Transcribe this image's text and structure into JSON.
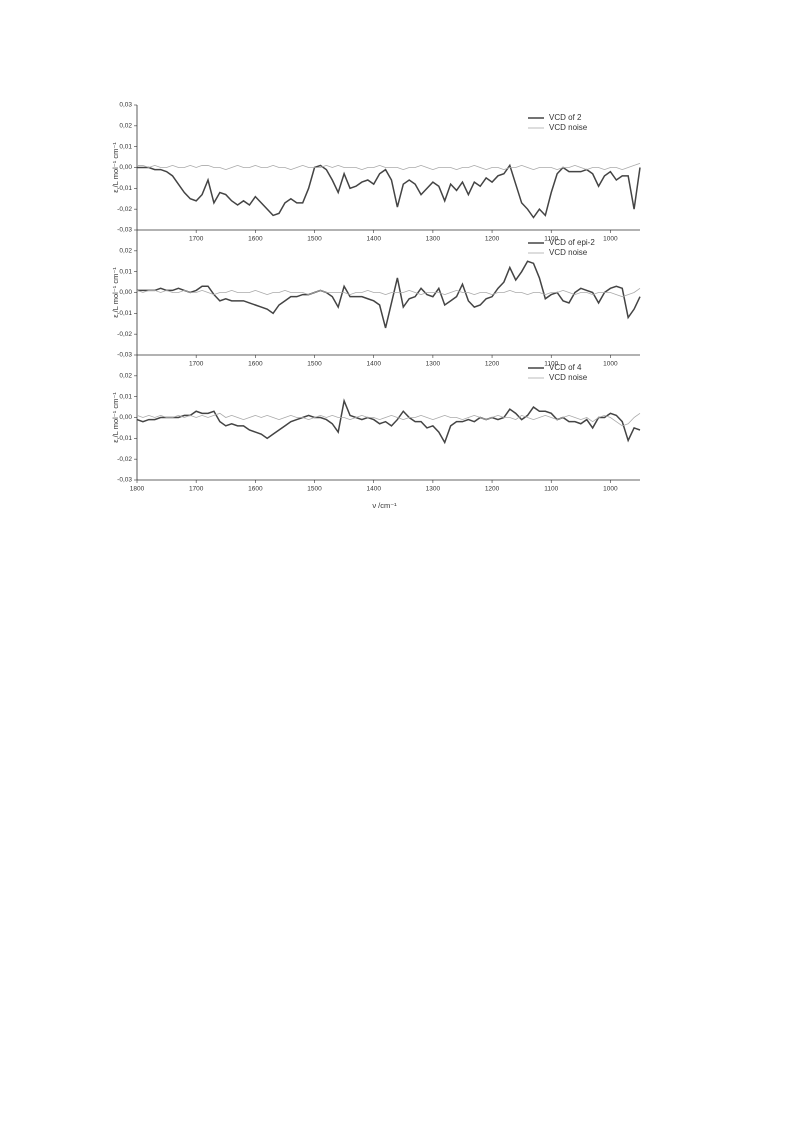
{
  "chart_data": [
    {
      "type": "line",
      "ylabel": "ε /L mol⁻¹ cm⁻¹",
      "xlim": [
        1800,
        950
      ],
      "ylim": [
        -0.03,
        0.03
      ],
      "xticks": [
        1700,
        1600,
        1500,
        1400,
        1300,
        1200,
        1100,
        1000
      ],
      "yticks": [
        {
          "value": 0.03,
          "label": "0,03"
        },
        {
          "value": 0.02,
          "label": "0,02"
        },
        {
          "value": 0.01,
          "label": "0,01"
        },
        {
          "value": 0,
          "label": "0,00"
        },
        {
          "value": -0.01,
          "label": "-0,01"
        },
        {
          "value": -0.02,
          "label": "-0,02"
        },
        {
          "value": -0.03,
          "label": "-0,03"
        }
      ],
      "legend": "upper right",
      "x": [
        1800,
        1790,
        1780,
        1770,
        1760,
        1750,
        1740,
        1730,
        1720,
        1710,
        1700,
        1690,
        1680,
        1670,
        1660,
        1650,
        1640,
        1630,
        1620,
        1610,
        1600,
        1590,
        1580,
        1570,
        1560,
        1550,
        1540,
        1530,
        1520,
        1510,
        1500,
        1490,
        1480,
        1470,
        1460,
        1450,
        1440,
        1430,
        1420,
        1410,
        1400,
        1390,
        1380,
        1370,
        1360,
        1350,
        1340,
        1330,
        1320,
        1310,
        1300,
        1290,
        1280,
        1270,
        1260,
        1250,
        1240,
        1230,
        1220,
        1210,
        1200,
        1190,
        1180,
        1170,
        1160,
        1150,
        1140,
        1130,
        1120,
        1110,
        1100,
        1090,
        1080,
        1070,
        1060,
        1050,
        1040,
        1030,
        1020,
        1010,
        1000,
        990,
        980,
        970,
        960,
        950
      ],
      "series": [
        {
          "name": "VCD of 2",
          "color": "#444444",
          "values": [
            0.0,
            0.0,
            0.0,
            -0.001,
            -0.001,
            -0.002,
            -0.004,
            -0.008,
            -0.012,
            -0.015,
            -0.016,
            -0.013,
            -0.006,
            -0.017,
            -0.012,
            -0.013,
            -0.016,
            -0.018,
            -0.016,
            -0.018,
            -0.014,
            -0.017,
            -0.02,
            -0.023,
            -0.022,
            -0.017,
            -0.015,
            -0.017,
            -0.017,
            -0.01,
            0.0,
            0.001,
            -0.001,
            -0.006,
            -0.012,
            -0.003,
            -0.01,
            -0.009,
            -0.007,
            -0.006,
            -0.008,
            -0.003,
            -0.001,
            -0.006,
            -0.019,
            -0.008,
            -0.006,
            -0.008,
            -0.013,
            -0.01,
            -0.007,
            -0.009,
            -0.016,
            -0.008,
            -0.011,
            -0.007,
            -0.013,
            -0.007,
            -0.009,
            -0.005,
            -0.007,
            -0.004,
            -0.003,
            0.001,
            -0.008,
            -0.017,
            -0.02,
            -0.024,
            -0.02,
            -0.023,
            -0.012,
            -0.003,
            0.0,
            -0.002,
            -0.002,
            -0.002,
            -0.001,
            -0.003,
            -0.009,
            -0.004,
            -0.002,
            -0.006,
            -0.004,
            -0.004,
            -0.02,
            0.0
          ]
        },
        {
          "name": "VCD noise",
          "color": "#aaaaaa",
          "values": [
            0.001,
            0.001,
            0.0,
            0.001,
            0.0,
            0.0,
            0.001,
            0.0,
            0.0,
            0.001,
            0.0,
            0.001,
            0.001,
            0.0,
            0.0,
            -0.001,
            0.0,
            0.001,
            0.0,
            0.0,
            0.001,
            0.0,
            0.0,
            0.001,
            0.0,
            0.0,
            -0.001,
            0.0,
            0.001,
            0.0,
            0.0,
            0.0,
            0.001,
            0.0,
            0.001,
            0.0,
            0.0,
            0.0,
            -0.001,
            0.0,
            0.0,
            0.001,
            0.0,
            0.0,
            0.0,
            -0.001,
            0.0,
            0.0,
            0.001,
            0.0,
            -0.001,
            0.0,
            0.0,
            0.0,
            -0.001,
            0.0,
            0.0,
            0.001,
            0.0,
            -0.001,
            0.0,
            0.0,
            -0.001,
            0.0,
            0.0,
            0.001,
            0.0,
            -0.001,
            0.0,
            0.0,
            0.0,
            -0.001,
            0.0,
            0.0,
            0.001,
            0.0,
            -0.001,
            0.0,
            0.0,
            -0.001,
            0.0,
            0.0,
            -0.001,
            0.0,
            0.001,
            0.002
          ]
        }
      ]
    },
    {
      "type": "line",
      "ylabel": "ε /L mol⁻¹ cm⁻¹",
      "xlim": [
        1800,
        950
      ],
      "ylim": [
        -0.03,
        0.03
      ],
      "xticks": [
        1700,
        1600,
        1500,
        1400,
        1300,
        1200,
        1100,
        1000
      ],
      "yticks": [
        {
          "value": 0.02,
          "label": "0,02"
        },
        {
          "value": 0.01,
          "label": "0,01"
        },
        {
          "value": 0,
          "label": "0,00"
        },
        {
          "value": -0.01,
          "label": "-0,01"
        },
        {
          "value": -0.02,
          "label": "-0,02"
        },
        {
          "value": -0.03,
          "label": "-0,03"
        }
      ],
      "legend": "upper right",
      "x": [
        1800,
        1790,
        1780,
        1770,
        1760,
        1750,
        1740,
        1730,
        1720,
        1710,
        1700,
        1690,
        1680,
        1670,
        1660,
        1650,
        1640,
        1630,
        1620,
        1610,
        1600,
        1590,
        1580,
        1570,
        1560,
        1550,
        1540,
        1530,
        1520,
        1510,
        1500,
        1490,
        1480,
        1470,
        1460,
        1450,
        1440,
        1430,
        1420,
        1410,
        1400,
        1390,
        1380,
        1370,
        1360,
        1350,
        1340,
        1330,
        1320,
        1310,
        1300,
        1290,
        1280,
        1270,
        1260,
        1250,
        1240,
        1230,
        1220,
        1210,
        1200,
        1190,
        1180,
        1170,
        1160,
        1150,
        1140,
        1130,
        1120,
        1110,
        1100,
        1090,
        1080,
        1070,
        1060,
        1050,
        1040,
        1030,
        1020,
        1010,
        1000,
        990,
        980,
        970,
        960,
        950
      ],
      "series": [
        {
          "name": "VCD of epi-2",
          "color": "#444444",
          "values": [
            0.001,
            0.001,
            0.001,
            0.001,
            0.002,
            0.001,
            0.001,
            0.002,
            0.001,
            0.0,
            0.001,
            0.003,
            0.003,
            -0.001,
            -0.004,
            -0.003,
            -0.004,
            -0.004,
            -0.004,
            -0.005,
            -0.006,
            -0.007,
            -0.008,
            -0.01,
            -0.006,
            -0.004,
            -0.002,
            -0.002,
            -0.001,
            -0.001,
            0.0,
            0.001,
            0.0,
            -0.002,
            -0.007,
            0.003,
            -0.002,
            -0.002,
            -0.002,
            -0.003,
            -0.004,
            -0.006,
            -0.017,
            -0.005,
            0.007,
            -0.007,
            -0.003,
            -0.002,
            0.002,
            -0.001,
            -0.002,
            0.002,
            -0.006,
            -0.004,
            -0.002,
            0.004,
            -0.004,
            -0.007,
            -0.006,
            -0.003,
            -0.002,
            0.002,
            0.005,
            0.012,
            0.006,
            0.01,
            0.015,
            0.014,
            0.007,
            -0.003,
            -0.001,
            0.0,
            -0.004,
            -0.005,
            0.0,
            0.002,
            0.001,
            0.0,
            -0.005,
            0.0,
            0.002,
            0.003,
            0.002,
            -0.012,
            -0.008,
            -0.002
          ]
        },
        {
          "name": "VCD noise",
          "color": "#aaaaaa",
          "values": [
            0.001,
            0.0,
            0.001,
            0.001,
            0.0,
            0.001,
            0.0,
            0.0,
            0.001,
            0.0,
            0.0,
            0.001,
            0.0,
            -0.001,
            0.0,
            0.0,
            0.001,
            0.0,
            0.0,
            0.0,
            0.001,
            0.0,
            -0.001,
            0.0,
            0.0,
            0.001,
            0.0,
            0.0,
            0.0,
            -0.001,
            0.0,
            0.001,
            0.0,
            0.0,
            0.0,
            0.0,
            -0.001,
            0.0,
            0.0,
            0.001,
            0.0,
            0.0,
            -0.001,
            0.0,
            0.0,
            0.0,
            0.001,
            0.0,
            -0.001,
            0.0,
            0.0,
            0.0,
            -0.001,
            0.0,
            0.001,
            0.0,
            0.0,
            -0.001,
            0.0,
            0.0,
            -0.001,
            0.0,
            0.0,
            0.001,
            0.0,
            0.0,
            -0.001,
            0.0,
            0.0,
            -0.001,
            0.0,
            0.0,
            0.001,
            0.0,
            -0.001,
            0.0,
            0.0,
            -0.001,
            0.0,
            0.0,
            0.0,
            -0.001,
            -0.002,
            -0.001,
            0.0,
            0.002
          ]
        }
      ]
    },
    {
      "type": "line",
      "ylabel": "ε /L mol⁻¹ cm⁻¹",
      "xlabel": "ν /cm⁻¹",
      "xlim": [
        1800,
        950
      ],
      "ylim": [
        -0.03,
        0.03
      ],
      "xticks": [
        1800,
        1700,
        1600,
        1500,
        1400,
        1300,
        1200,
        1100,
        1000
      ],
      "yticks": [
        {
          "value": 0.02,
          "label": "0,02"
        },
        {
          "value": 0.01,
          "label": "0,01"
        },
        {
          "value": 0,
          "label": "0,00"
        },
        {
          "value": -0.01,
          "label": "-0,01"
        },
        {
          "value": -0.02,
          "label": "-0,02"
        },
        {
          "value": -0.03,
          "label": "-0,03"
        }
      ],
      "legend": "upper right",
      "x": [
        1800,
        1790,
        1780,
        1770,
        1760,
        1750,
        1740,
        1730,
        1720,
        1710,
        1700,
        1690,
        1680,
        1670,
        1660,
        1650,
        1640,
        1630,
        1620,
        1610,
        1600,
        1590,
        1580,
        1570,
        1560,
        1550,
        1540,
        1530,
        1520,
        1510,
        1500,
        1490,
        1480,
        1470,
        1460,
        1450,
        1440,
        1430,
        1420,
        1410,
        1400,
        1390,
        1380,
        1370,
        1360,
        1350,
        1340,
        1330,
        1320,
        1310,
        1300,
        1290,
        1280,
        1270,
        1260,
        1250,
        1240,
        1230,
        1220,
        1210,
        1200,
        1190,
        1180,
        1170,
        1160,
        1150,
        1140,
        1130,
        1120,
        1110,
        1100,
        1090,
        1080,
        1070,
        1060,
        1050,
        1040,
        1030,
        1020,
        1010,
        1000,
        990,
        980,
        970,
        960,
        950
      ],
      "series": [
        {
          "name": "VCD of 4",
          "color": "#444444",
          "values": [
            -0.001,
            -0.002,
            -0.001,
            -0.001,
            0.0,
            0.0,
            0.0,
            0.0,
            0.001,
            0.001,
            0.003,
            0.002,
            0.002,
            0.003,
            -0.002,
            -0.004,
            -0.003,
            -0.004,
            -0.004,
            -0.006,
            -0.007,
            -0.008,
            -0.01,
            -0.008,
            -0.006,
            -0.004,
            -0.002,
            -0.001,
            0.0,
            0.001,
            0.0,
            0.0,
            -0.001,
            -0.003,
            -0.007,
            0.008,
            0.001,
            0.0,
            -0.001,
            0.0,
            -0.001,
            -0.003,
            -0.002,
            -0.004,
            -0.001,
            0.003,
            0.0,
            -0.002,
            -0.002,
            -0.005,
            -0.004,
            -0.007,
            -0.012,
            -0.004,
            -0.002,
            -0.002,
            -0.001,
            -0.002,
            0.0,
            -0.001,
            0.0,
            -0.001,
            0.0,
            0.004,
            0.002,
            -0.001,
            0.001,
            0.005,
            0.003,
            0.003,
            0.002,
            -0.001,
            0.0,
            -0.002,
            -0.002,
            -0.003,
            -0.001,
            -0.005,
            0.0,
            0.0,
            0.002,
            0.001,
            -0.002,
            -0.011,
            -0.005,
            -0.006
          ]
        },
        {
          "name": "VCD noise",
          "color": "#aaaaaa",
          "values": [
            0.001,
            0.0,
            0.001,
            0.0,
            0.001,
            0.0,
            0.0,
            0.001,
            0.0,
            0.001,
            0.0,
            0.001,
            0.0,
            0.001,
            0.002,
            0.0,
            0.001,
            0.0,
            -0.001,
            0.0,
            0.001,
            0.0,
            0.001,
            0.0,
            -0.001,
            0.0,
            0.001,
            0.0,
            0.0,
            -0.001,
            0.0,
            0.001,
            0.0,
            0.001,
            0.0,
            0.0,
            -0.001,
            0.0,
            0.001,
            0.0,
            0.0,
            -0.001,
            0.0,
            0.001,
            0.0,
            -0.001,
            0.0,
            0.0,
            0.001,
            0.0,
            -0.001,
            0.0,
            0.001,
            0.0,
            0.0,
            -0.001,
            0.0,
            0.001,
            0.0,
            -0.001,
            0.0,
            0.001,
            0.0,
            0.0,
            -0.001,
            0.001,
            0.0,
            -0.001,
            0.0,
            0.001,
            0.0,
            -0.001,
            0.0,
            0.001,
            0.0,
            -0.001,
            0.0,
            -0.002,
            0.0,
            0.001,
            0.0,
            -0.002,
            -0.004,
            -0.003,
            0.0,
            0.002
          ]
        }
      ]
    }
  ]
}
